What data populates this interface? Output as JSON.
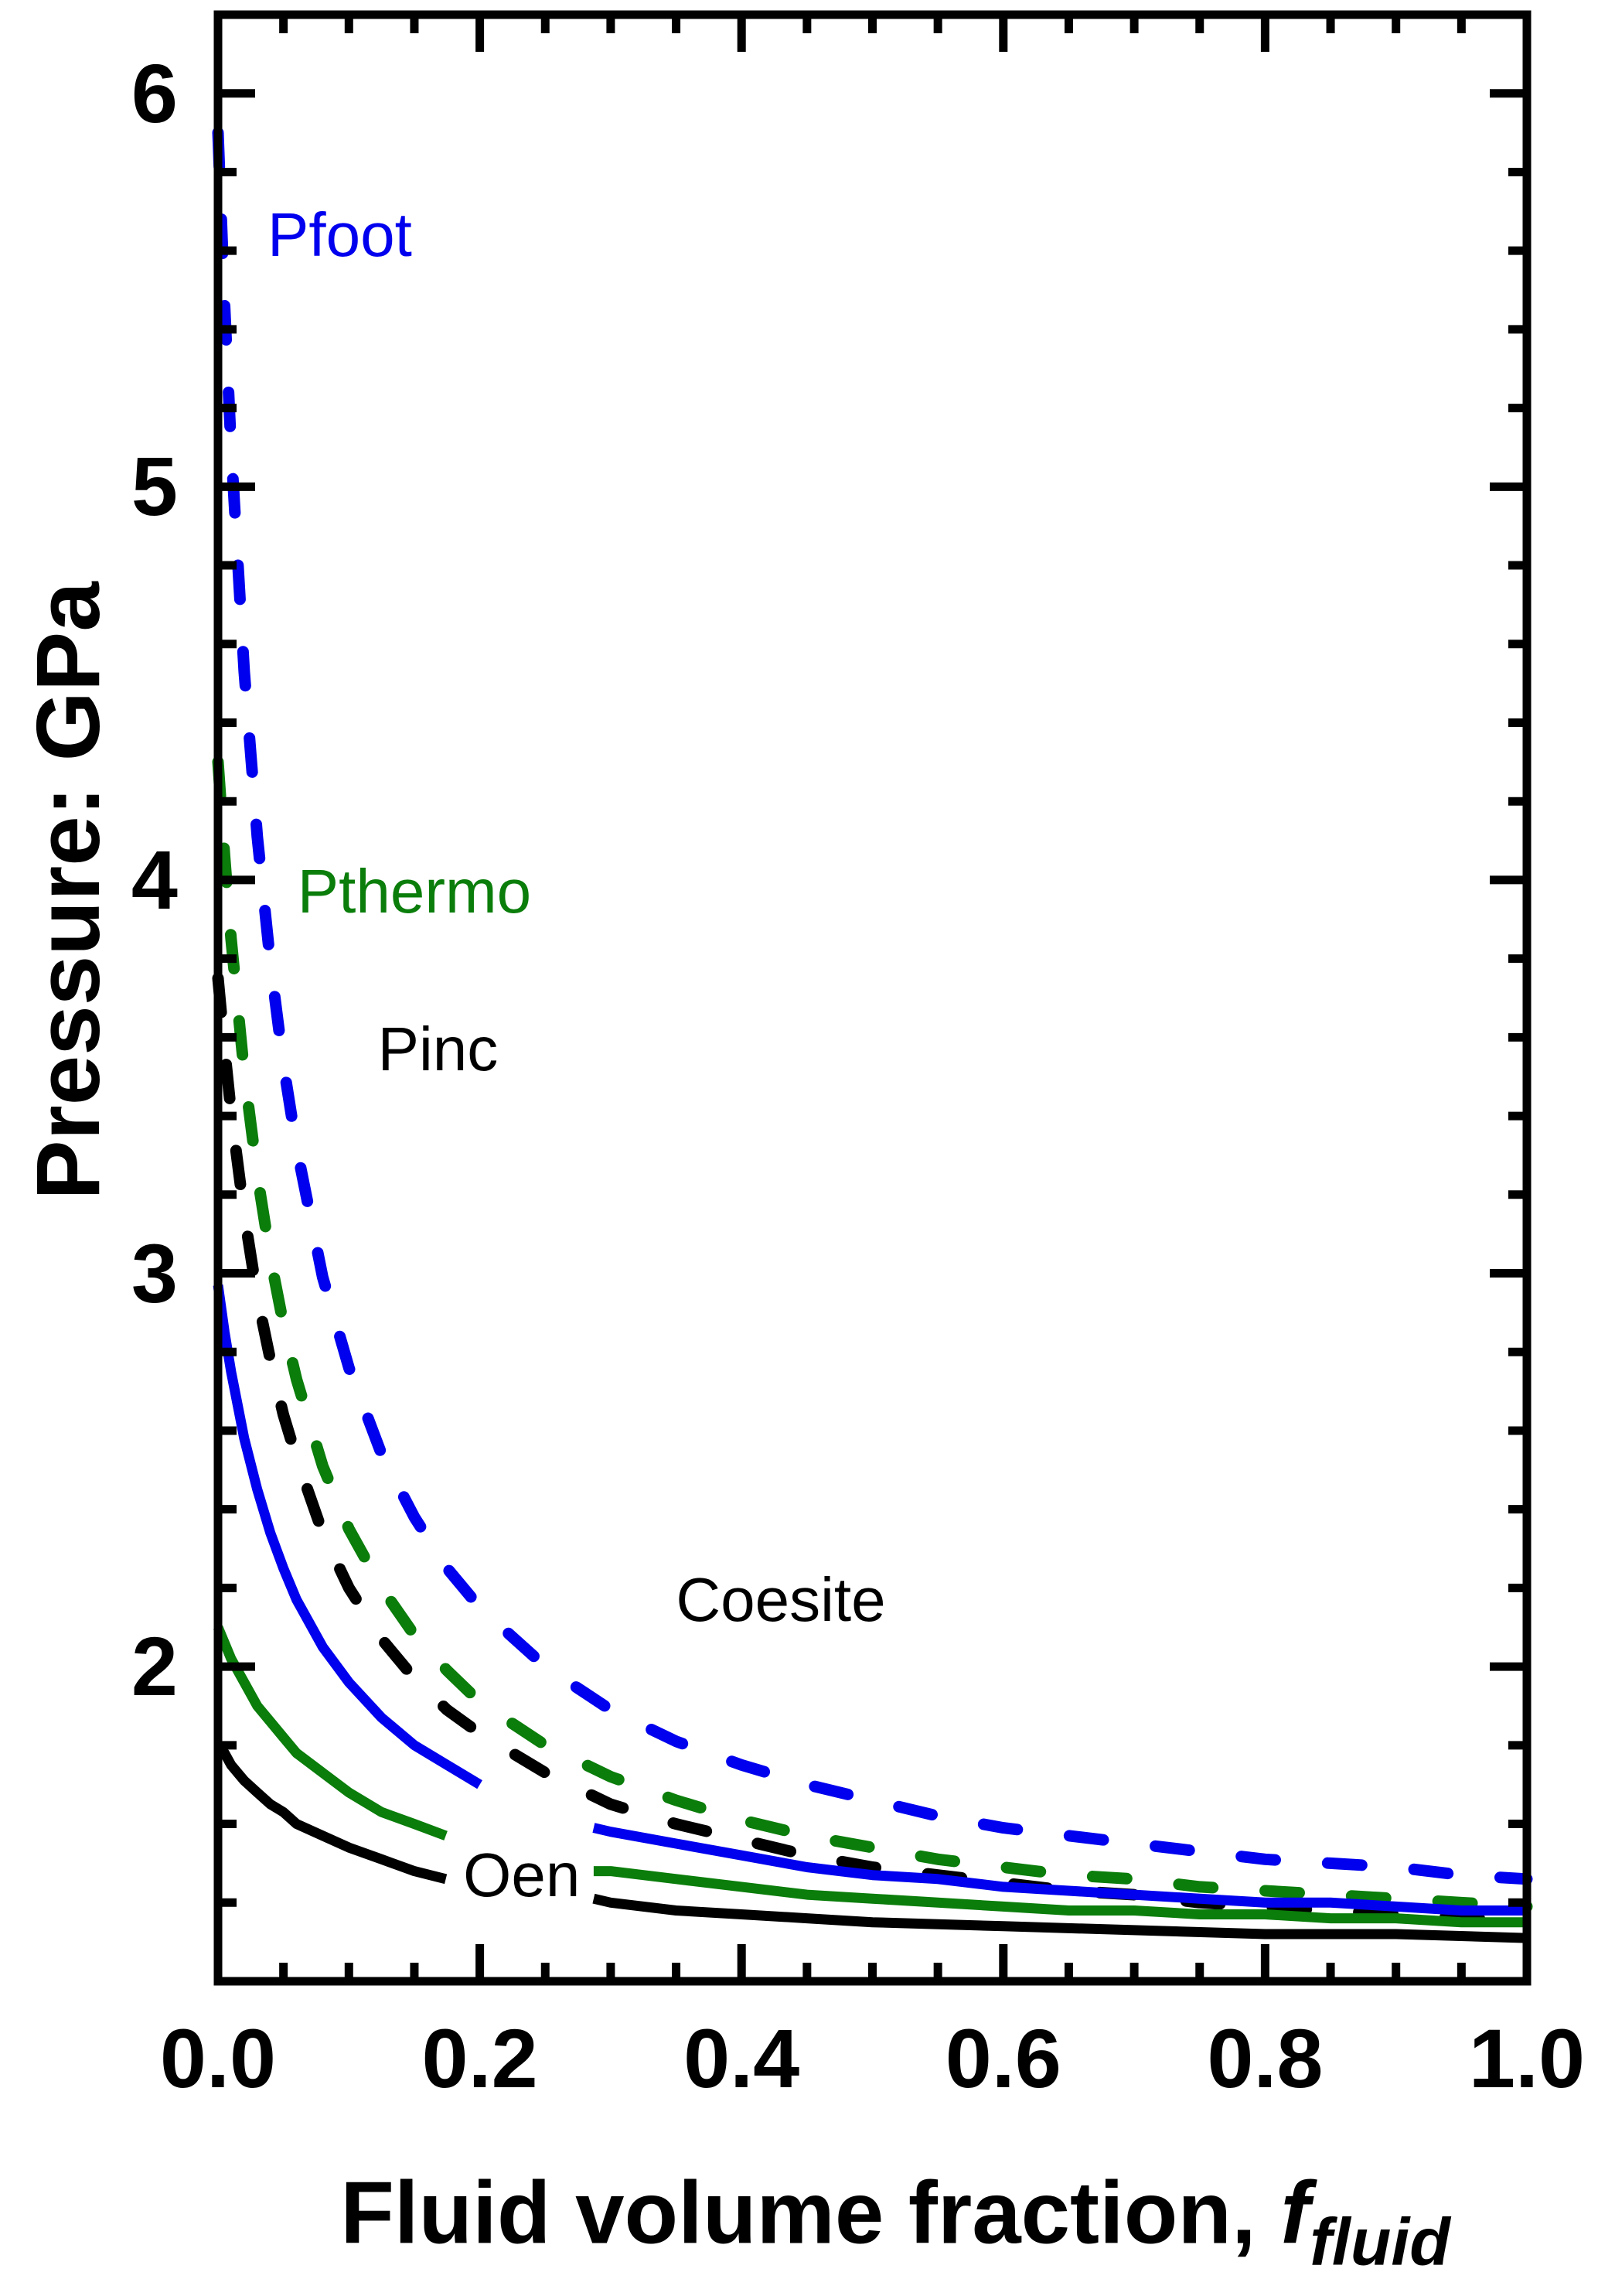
{
  "figure": {
    "background": "#ffffff",
    "axis_color": "#000000",
    "y_axis": {
      "title": "Pressure: GPa",
      "min": 1.2,
      "max": 6.2,
      "major_ticks": [
        2,
        3,
        4,
        5,
        6
      ],
      "major_tick_labels": [
        "2",
        "3",
        "4",
        "5",
        "6"
      ],
      "minor_step": 0.2
    },
    "x_axis": {
      "title_main": "Fluid volume fraction, ",
      "title_var": "f",
      "title_sub": "fluid",
      "min": 0.0,
      "max": 1.0,
      "major_ticks": [
        0.0,
        0.2,
        0.4,
        0.6,
        0.8,
        1.0
      ],
      "major_tick_labels": [
        "0.0",
        "0.2",
        "0.4",
        "0.6",
        "0.8",
        "1.0"
      ],
      "minor_step": 0.05
    }
  },
  "chart_data": {
    "type": "line",
    "title": "",
    "xlabel": "Fluid volume fraction, f_fluid",
    "ylabel": "Pressure: GPa",
    "xlim": [
      0.0,
      1.0
    ],
    "ylim": [
      1.2,
      6.2
    ],
    "grid": false,
    "legend_position": "none",
    "series": [
      {
        "name": "Pfoot - Coesite (dashed)",
        "color": "#0000ee",
        "style": "dashed",
        "segments": [
          [
            [
              0.0,
              5.9
            ],
            [
              0.005,
              5.46
            ],
            [
              0.01,
              5.1
            ],
            [
              0.02,
              4.53
            ],
            [
              0.03,
              4.11
            ],
            [
              0.04,
              3.79
            ],
            [
              0.05,
              3.53
            ],
            [
              0.06,
              3.32
            ],
            [
              0.08,
              2.99
            ],
            [
              0.1,
              2.76
            ],
            [
              0.125,
              2.54
            ],
            [
              0.15,
              2.38
            ],
            [
              0.175,
              2.25
            ],
            [
              0.2,
              2.15
            ],
            [
              0.25,
              2.0
            ],
            [
              0.3,
              1.89
            ],
            [
              0.35,
              1.81
            ],
            [
              0.4,
              1.75
            ],
            [
              0.45,
              1.7
            ],
            [
              0.5,
              1.66
            ],
            [
              0.55,
              1.62
            ],
            [
              0.6,
              1.59
            ],
            [
              0.65,
              1.57
            ],
            [
              0.7,
              1.55
            ],
            [
              0.75,
              1.53
            ],
            [
              0.8,
              1.51
            ],
            [
              0.85,
              1.5
            ],
            [
              0.9,
              1.49
            ],
            [
              0.95,
              1.47
            ],
            [
              1.0,
              1.46
            ]
          ]
        ]
      },
      {
        "name": "Pthermo - Coesite (dashed)",
        "color": "#0a7d0a",
        "style": "dashed",
        "segments": [
          [
            [
              0.0,
              4.3
            ],
            [
              0.005,
              4.06
            ],
            [
              0.01,
              3.85
            ],
            [
              0.02,
              3.51
            ],
            [
              0.03,
              3.25
            ],
            [
              0.04,
              3.04
            ],
            [
              0.05,
              2.87
            ],
            [
              0.06,
              2.73
            ],
            [
              0.08,
              2.51
            ],
            [
              0.1,
              2.35
            ],
            [
              0.125,
              2.2
            ],
            [
              0.15,
              2.08
            ],
            [
              0.175,
              1.99
            ],
            [
              0.2,
              1.91
            ],
            [
              0.25,
              1.8
            ],
            [
              0.3,
              1.72
            ],
            [
              0.35,
              1.66
            ],
            [
              0.4,
              1.61
            ],
            [
              0.45,
              1.57
            ],
            [
              0.5,
              1.54
            ],
            [
              0.55,
              1.51
            ],
            [
              0.6,
              1.49
            ],
            [
              0.65,
              1.47
            ],
            [
              0.7,
              1.46
            ],
            [
              0.75,
              1.44
            ],
            [
              0.8,
              1.43
            ],
            [
              0.85,
              1.42
            ],
            [
              0.9,
              1.41
            ],
            [
              0.95,
              1.4
            ],
            [
              1.0,
              1.39
            ]
          ]
        ]
      },
      {
        "name": "Pinc - Coesite (dashed)",
        "color": "#000000",
        "style": "dashed",
        "segments": [
          [
            [
              0.0,
              3.75
            ],
            [
              0.005,
              3.57
            ],
            [
              0.01,
              3.41
            ],
            [
              0.02,
              3.15
            ],
            [
              0.03,
              2.94
            ],
            [
              0.04,
              2.78
            ],
            [
              0.05,
              2.64
            ],
            [
              0.06,
              2.53
            ],
            [
              0.08,
              2.34
            ],
            [
              0.1,
              2.2
            ],
            [
              0.125,
              2.07
            ],
            [
              0.15,
              1.97
            ],
            [
              0.175,
              1.89
            ],
            [
              0.2,
              1.83
            ],
            [
              0.25,
              1.73
            ],
            [
              0.3,
              1.65
            ],
            [
              0.35,
              1.6
            ],
            [
              0.4,
              1.56
            ],
            [
              0.45,
              1.52
            ],
            [
              0.5,
              1.49
            ],
            [
              0.55,
              1.47
            ],
            [
              0.6,
              1.45
            ],
            [
              0.65,
              1.43
            ],
            [
              0.7,
              1.42
            ],
            [
              0.75,
              1.4
            ],
            [
              0.8,
              1.39
            ],
            [
              0.85,
              1.38
            ],
            [
              0.9,
              1.37
            ],
            [
              0.95,
              1.36
            ],
            [
              1.0,
              1.36
            ]
          ]
        ]
      },
      {
        "name": "Pfoot - Oen (solid)",
        "color": "#0000ee",
        "style": "solid",
        "segments": [
          [
            [
              0.0,
              2.97
            ],
            [
              0.005,
              2.85
            ],
            [
              0.01,
              2.75
            ],
            [
              0.02,
              2.58
            ],
            [
              0.03,
              2.45
            ],
            [
              0.04,
              2.34
            ],
            [
              0.05,
              2.25
            ],
            [
              0.06,
              2.17
            ],
            [
              0.08,
              2.05
            ],
            [
              0.1,
              1.96
            ],
            [
              0.125,
              1.87
            ],
            [
              0.15,
              1.8
            ],
            [
              0.175,
              1.75
            ],
            [
              0.2,
              1.7
            ]
          ],
          [
            [
              0.287,
              1.59
            ],
            [
              0.3,
              1.58
            ],
            [
              0.35,
              1.55
            ],
            [
              0.4,
              1.52
            ],
            [
              0.45,
              1.49
            ],
            [
              0.5,
              1.47
            ],
            [
              0.55,
              1.46
            ],
            [
              0.6,
              1.44
            ],
            [
              0.65,
              1.43
            ],
            [
              0.7,
              1.42
            ],
            [
              0.75,
              1.41
            ],
            [
              0.8,
              1.4
            ],
            [
              0.85,
              1.4
            ],
            [
              0.9,
              1.39
            ],
            [
              0.95,
              1.38
            ],
            [
              1.0,
              1.38
            ]
          ]
        ]
      },
      {
        "name": "Pthermo - Oen (solid)",
        "color": "#0a7d0a",
        "style": "solid",
        "segments": [
          [
            [
              0.0,
              2.1
            ],
            [
              0.005,
              2.06
            ],
            [
              0.01,
              2.02
            ],
            [
              0.02,
              1.96
            ],
            [
              0.03,
              1.9
            ],
            [
              0.04,
              1.86
            ],
            [
              0.05,
              1.82
            ],
            [
              0.06,
              1.78
            ],
            [
              0.08,
              1.73
            ],
            [
              0.1,
              1.68
            ],
            [
              0.125,
              1.63
            ],
            [
              0.15,
              1.6
            ],
            [
              0.174,
              1.57
            ]
          ],
          [
            [
              0.287,
              1.48
            ],
            [
              0.3,
              1.48
            ],
            [
              0.35,
              1.46
            ],
            [
              0.4,
              1.44
            ],
            [
              0.45,
              1.42
            ],
            [
              0.5,
              1.41
            ],
            [
              0.55,
              1.4
            ],
            [
              0.6,
              1.39
            ],
            [
              0.65,
              1.38
            ],
            [
              0.7,
              1.38
            ],
            [
              0.75,
              1.37
            ],
            [
              0.8,
              1.37
            ],
            [
              0.85,
              1.36
            ],
            [
              0.9,
              1.36
            ],
            [
              0.95,
              1.35
            ],
            [
              1.0,
              1.35
            ]
          ]
        ]
      },
      {
        "name": "Pinc - Oen (solid)",
        "color": "#000000",
        "style": "solid",
        "segments": [
          [
            [
              0.0,
              1.8
            ],
            [
              0.005,
              1.78
            ],
            [
              0.01,
              1.75
            ],
            [
              0.02,
              1.71
            ],
            [
              0.03,
              1.68
            ],
            [
              0.04,
              1.65
            ],
            [
              0.05,
              1.63
            ],
            [
              0.06,
              1.6
            ],
            [
              0.08,
              1.57
            ],
            [
              0.1,
              1.54
            ],
            [
              0.125,
              1.51
            ],
            [
              0.15,
              1.48
            ],
            [
              0.174,
              1.46
            ]
          ],
          [
            [
              0.287,
              1.41
            ],
            [
              0.3,
              1.4
            ],
            [
              0.35,
              1.38
            ],
            [
              0.4,
              1.37
            ],
            [
              0.45,
              1.36
            ],
            [
              0.5,
              1.35
            ],
            [
              0.6,
              1.34
            ],
            [
              0.7,
              1.33
            ],
            [
              0.8,
              1.32
            ],
            [
              0.9,
              1.32
            ],
            [
              1.0,
              1.31
            ]
          ]
        ]
      }
    ],
    "annotations": [
      {
        "id": "pfoot",
        "text": "Pfoot",
        "color": "#0000ee",
        "f": 0.093,
        "P": 5.64
      },
      {
        "id": "pthermo",
        "text": "Pthermo",
        "color": "#0a7d0a",
        "f": 0.15,
        "P": 3.97
      },
      {
        "id": "pinc",
        "text": "Pinc",
        "color": "#000000",
        "f": 0.168,
        "P": 3.57
      },
      {
        "id": "coesite",
        "text": "Coesite",
        "color": "#000000",
        "f": 0.43,
        "P": 2.17
      },
      {
        "id": "oen",
        "text": "Oen",
        "color": "#000000",
        "f": 0.232,
        "P": 1.47
      }
    ]
  }
}
